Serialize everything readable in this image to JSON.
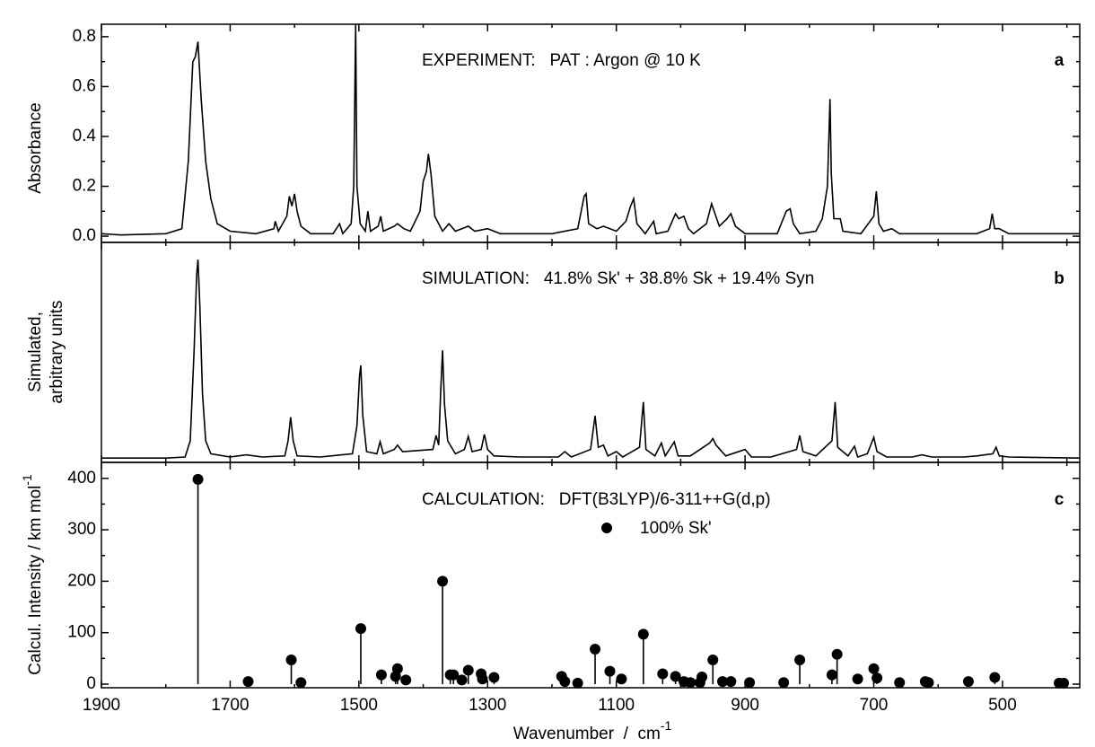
{
  "chart_data": [
    {
      "type": "line",
      "title": "EXPERIMENT:   PAT : Argon @ 10 K",
      "panel_label": "a",
      "y_label": "Absorbance",
      "color": "#000000",
      "xlim": [
        1900,
        380
      ],
      "ylim": [
        -0.025,
        0.85
      ],
      "yticks": [
        {
          "value": 0,
          "label": "0.0"
        },
        0.2,
        0.4,
        0.6,
        0.8
      ],
      "yminor_ticks": [
        0.1,
        0.3,
        0.5,
        0.7
      ],
      "x": [
        1900,
        1870,
        1800,
        1775,
        1765,
        1758,
        1754,
        1750,
        1745,
        1738,
        1730,
        1720,
        1700,
        1660,
        1632,
        1630,
        1625,
        1612,
        1608,
        1604,
        1600,
        1596,
        1590,
        1575,
        1540,
        1530,
        1525,
        1512,
        1508,
        1505,
        1503,
        1498,
        1490,
        1486,
        1482,
        1470,
        1466,
        1462,
        1445,
        1440,
        1430,
        1420,
        1405,
        1400,
        1395,
        1392,
        1388,
        1382,
        1370,
        1360,
        1350,
        1330,
        1320,
        1300,
        1280,
        1200,
        1160,
        1150,
        1147,
        1143,
        1130,
        1120,
        1100,
        1085,
        1078,
        1073,
        1068,
        1055,
        1042,
        1038,
        1020,
        1008,
        1003,
        995,
        988,
        980,
        960,
        952,
        948,
        940,
        928,
        922,
        915,
        900,
        870,
        850,
        836,
        830,
        825,
        815,
        790,
        780,
        772,
        768,
        766,
        762,
        752,
        748,
        720,
        700,
        696,
        692,
        685,
        672,
        660,
        600,
        540,
        520,
        516,
        512,
        505,
        490,
        450,
        380
      ],
      "values": [
        0.01,
        0.005,
        0.01,
        0.03,
        0.3,
        0.7,
        0.72,
        0.78,
        0.55,
        0.3,
        0.15,
        0.05,
        0.02,
        0.01,
        0.03,
        0.06,
        0.02,
        0.08,
        0.16,
        0.12,
        0.17,
        0.1,
        0.04,
        0.01,
        0.01,
        0.05,
        0.01,
        0.05,
        0.2,
        0.85,
        0.2,
        0.05,
        0.02,
        0.1,
        0.02,
        0.04,
        0.08,
        0.02,
        0.04,
        0.05,
        0.03,
        0.02,
        0.1,
        0.22,
        0.26,
        0.33,
        0.25,
        0.08,
        0.02,
        0.05,
        0.02,
        0.04,
        0.02,
        0.03,
        0.01,
        0.01,
        0.03,
        0.16,
        0.17,
        0.05,
        0.03,
        0.04,
        0.02,
        0.06,
        0.12,
        0.15,
        0.05,
        0.01,
        0.06,
        0.01,
        0.02,
        0.09,
        0.07,
        0.08,
        0.03,
        0.01,
        0.05,
        0.13,
        0.1,
        0.04,
        0.07,
        0.09,
        0.04,
        0.01,
        0.01,
        0.01,
        0.1,
        0.11,
        0.05,
        0.01,
        0.02,
        0.07,
        0.2,
        0.55,
        0.25,
        0.07,
        0.07,
        0.02,
        0.01,
        0.08,
        0.18,
        0.05,
        0.02,
        0.03,
        0.01,
        0.01,
        0.01,
        0.03,
        0.09,
        0.03,
        0.03,
        0.01,
        0.01,
        0.01
      ]
    },
    {
      "type": "line",
      "title": "SIMULATION:   41.8% Sk' + 38.8% Sk + 19.4% Syn",
      "panel_label": "b",
      "y_label": [
        "Simulated,",
        "arbitrary units"
      ],
      "color": "#000000",
      "xlim": [
        1900,
        380
      ],
      "ylim": [
        -2,
        100
      ],
      "x": [
        1900,
        1800,
        1770,
        1762,
        1756,
        1752,
        1750,
        1747,
        1743,
        1738,
        1730,
        1700,
        1675,
        1650,
        1615,
        1610,
        1606,
        1602,
        1596,
        1560,
        1510,
        1503,
        1499,
        1497,
        1494,
        1488,
        1472,
        1467,
        1462,
        1445,
        1440,
        1432,
        1385,
        1380,
        1376,
        1373,
        1370,
        1367,
        1362,
        1350,
        1336,
        1330,
        1324,
        1310,
        1305,
        1300,
        1290,
        1250,
        1190,
        1180,
        1170,
        1140,
        1133,
        1128,
        1120,
        1113,
        1100,
        1090,
        1064,
        1058,
        1054,
        1040,
        1030,
        1024,
        1010,
        1004,
        985,
        955,
        950,
        945,
        930,
        900,
        890,
        860,
        820,
        815,
        810,
        790,
        765,
        760,
        756,
        740,
        730,
        725,
        710,
        700,
        695,
        680,
        640,
        625,
        610,
        560,
        540,
        515,
        510,
        505,
        490,
        380
      ],
      "values": [
        0,
        0,
        0.5,
        8,
        50,
        85,
        92,
        70,
        30,
        8,
        2,
        0.5,
        1.5,
        0.5,
        1,
        8,
        19,
        8,
        1,
        0.5,
        2,
        15,
        38,
        43,
        20,
        3,
        2,
        7.6,
        2,
        4,
        6,
        3,
        4,
        10.5,
        6,
        30,
        50,
        25,
        8,
        2,
        4,
        10,
        3,
        4,
        11,
        4,
        1,
        0.5,
        0.5,
        3,
        0.5,
        4,
        19.6,
        5,
        6,
        1,
        3,
        0.5,
        5,
        26,
        4,
        1,
        7,
        1,
        7.5,
        1,
        1,
        7,
        9,
        6,
        1,
        4,
        0.5,
        0.5,
        4,
        10.5,
        3,
        1,
        8,
        26,
        5,
        1,
        5.5,
        0.5,
        2,
        9.6,
        3,
        0.5,
        0.5,
        1.5,
        0.5,
        0.5,
        1,
        2,
        5,
        1,
        0.5,
        0
      ]
    },
    {
      "type": "stem",
      "title": "CALCULATION:   DFT(B3LYP)/6-311++G(d,p)",
      "panel_label": "c",
      "y_label": "Calcul. Intensity / km mol",
      "y_label_sup": "-1",
      "x_label": "Wavenumber  /  cm",
      "x_label_sup": "-1",
      "xlim": [
        1900,
        380
      ],
      "ylim": [
        -7,
        431
      ],
      "xticks": [
        1900,
        1700,
        1500,
        1300,
        1100,
        900,
        700,
        500
      ],
      "xminor_ticks": [
        1800,
        1600,
        1400,
        1200,
        1000,
        800,
        600,
        400
      ],
      "yticks": [
        0,
        100,
        200,
        300,
        400
      ],
      "yminor_ticks": [
        50,
        150,
        250,
        350
      ],
      "x": [
        1750,
        1672,
        1605,
        1590,
        1497,
        1465,
        1443,
        1440,
        1427,
        1370,
        1358,
        1353,
        1340,
        1330,
        1310,
        1308,
        1290,
        1185,
        1180,
        1160,
        1133,
        1110,
        1092,
        1058,
        1028,
        1008,
        995,
        985,
        970,
        967,
        950,
        935,
        922,
        893,
        840,
        815,
        765,
        757,
        725,
        700,
        695,
        660,
        620,
        615,
        553,
        512,
        412,
        405
      ],
      "series": [
        {
          "name": "100% Sk'",
          "color": "#000000",
          "values": [
            398,
            5,
            47,
            3,
            108,
            18,
            15,
            30,
            8,
            200,
            18,
            18,
            8,
            27,
            20,
            10,
            13,
            15,
            5,
            2,
            68,
            25,
            10,
            97,
            20,
            15,
            5,
            3,
            3,
            14,
            47,
            5,
            5,
            3,
            3,
            47,
            18,
            58,
            10,
            30,
            12,
            3,
            5,
            3,
            5,
            13,
            2,
            2
          ]
        }
      ]
    }
  ]
}
